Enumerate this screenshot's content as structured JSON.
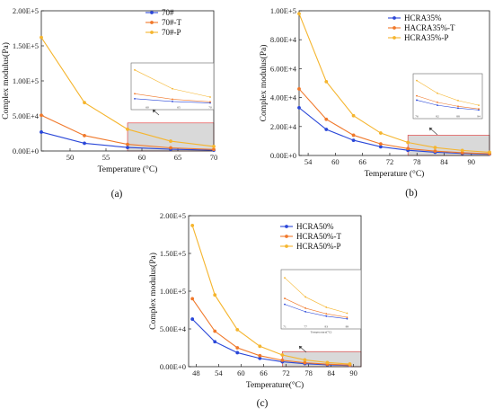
{
  "colors": {
    "blue": "#2a47d8",
    "orange": "#f0782a",
    "yellow": "#f5b52e",
    "shade": "#d9d9d9",
    "shadeBorder": "#e03030"
  },
  "chart_data": [
    {
      "type": "line",
      "label": "(a)",
      "xlabel": "Temperature (°C)",
      "ylabel": "Complex modulus(Pa)",
      "xlim": [
        46,
        70
      ],
      "ylim": [
        0,
        200000
      ],
      "xticks": [
        "50",
        "55",
        "60",
        "65",
        "70"
      ],
      "yticks": [
        "0.00E+0",
        "5.00E+4",
        "1.00E+5",
        "1.50E+5",
        "2.00E+5"
      ],
      "legend_position": "top-right",
      "x": [
        46,
        52,
        58,
        64,
        70
      ],
      "series": [
        {
          "name": "70#",
          "color": "blue",
          "values": [
            27000,
            11000,
            5000,
            2500,
            1200
          ]
        },
        {
          "name": "70#-T",
          "color": "orange",
          "values": [
            51000,
            22000,
            9500,
            4500,
            2200
          ]
        },
        {
          "name": "70#-P",
          "color": "yellow",
          "values": [
            162000,
            69000,
            31000,
            14000,
            6500
          ]
        }
      ],
      "shade": {
        "x": [
          58,
          70
        ],
        "y": [
          0,
          40000
        ]
      },
      "inset": {
        "xticks": [
          "60",
          "65",
          "70"
        ]
      }
    },
    {
      "type": "line",
      "label": "(b)",
      "xlabel": "Temperature (°C)",
      "ylabel": "Complex modulus(Pa)",
      "xlim": [
        52,
        94
      ],
      "ylim": [
        0,
        100000
      ],
      "xticks": [
        "54",
        "60",
        "66",
        "72",
        "78",
        "84",
        "90"
      ],
      "yticks": [
        "0.00E+0",
        "2.00E+4",
        "4.00E+4",
        "6.00E+4",
        "8.00E+4",
        "1.00E+5"
      ],
      "legend_position": "top-right",
      "x": [
        52,
        58,
        64,
        70,
        76,
        82,
        88,
        94
      ],
      "series": [
        {
          "name": "HCRA35%",
          "color": "blue",
          "values": [
            33000,
            18000,
            10500,
            6000,
            3600,
            2200,
            1400,
            900
          ]
        },
        {
          "name": "HACRA35%-T",
          "color": "orange",
          "values": [
            46000,
            25000,
            14000,
            8000,
            4800,
            3000,
            1900,
            1200
          ]
        },
        {
          "name": "HCRA35%-P",
          "color": "yellow",
          "values": [
            98000,
            51000,
            27500,
            15500,
            9000,
            5500,
            3500,
            2200
          ]
        }
      ],
      "shade": {
        "x": [
          76,
          94
        ],
        "y": [
          0,
          14000
        ]
      },
      "inset": {
        "xticks": [
          "76",
          "82",
          "88",
          "94"
        ]
      }
    },
    {
      "type": "line",
      "label": "(c)",
      "xlabel": "Temperature(°C)",
      "ylabel": "Complex modulus(Pa)",
      "xlim": [
        46,
        92
      ],
      "ylim": [
        0,
        200000
      ],
      "xticks": [
        "48",
        "54",
        "60",
        "66",
        "72",
        "78",
        "84",
        "90"
      ],
      "yticks": [
        "0.00E+0",
        "5.00E+4",
        "1.00E+5",
        "1.50E+5",
        "2.00E+5"
      ],
      "legend_position": "top-right",
      "x": [
        47,
        53,
        59,
        65,
        71,
        77,
        83,
        89
      ],
      "series": [
        {
          "name": "HCRA50%",
          "color": "blue",
          "values": [
            63000,
            33000,
            18500,
            11000,
            6500,
            4000,
            2500,
            1600
          ]
        },
        {
          "name": "HCRA50%-T",
          "color": "orange",
          "values": [
            90000,
            47000,
            25000,
            14500,
            8500,
            5200,
            3300,
            2100
          ]
        },
        {
          "name": "HCRA50%-P",
          "color": "yellow",
          "values": [
            187000,
            95000,
            49000,
            27000,
            15500,
            9000,
            5500,
            3500
          ]
        }
      ],
      "shade": {
        "x": [
          71,
          92
        ],
        "y": [
          0,
          20000
        ]
      },
      "inset": {
        "xticks": [
          "71",
          "77",
          "83",
          "89"
        ],
        "xlabel": "Temperature(°C)"
      }
    }
  ]
}
